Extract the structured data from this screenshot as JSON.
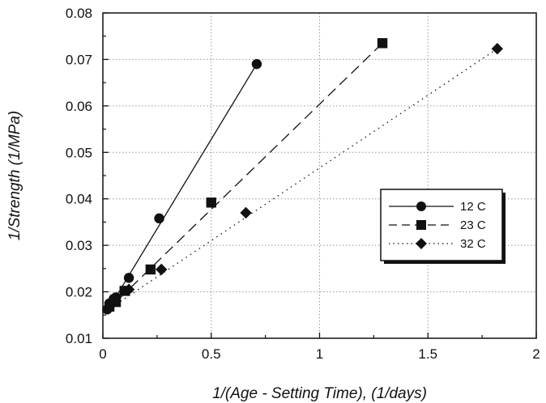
{
  "chart_data": {
    "type": "scatter",
    "title": "",
    "xlabel": "1/(Age - Setting Time), (1/days)",
    "ylabel": "1/Strength (1/MPa)",
    "xlim": [
      0,
      2
    ],
    "ylim": [
      0.01,
      0.08
    ],
    "xticks": [
      0,
      0.5,
      1,
      1.5,
      2
    ],
    "xtick_labels": [
      "0",
      "0.5",
      "1",
      "1.5",
      "2"
    ],
    "yticks": [
      0.01,
      0.02,
      0.03,
      0.04,
      0.05,
      0.06,
      0.07,
      0.08
    ],
    "ytick_labels": [
      "0.01",
      "0.02",
      "0.03",
      "0.04",
      "0.05",
      "0.06",
      "0.07",
      "0.08"
    ],
    "grid": true,
    "legend_position": "right-middle",
    "series": [
      {
        "name": "12 C",
        "marker": "circle",
        "line_style": "solid",
        "x": [
          0.02,
          0.03,
          0.05,
          0.06,
          0.12,
          0.26,
          0.71
        ],
        "y": [
          0.0162,
          0.0175,
          0.0185,
          0.0188,
          0.023,
          0.0358,
          0.069
        ],
        "fit": {
          "x": [
            0.02,
            0.71
          ],
          "y": [
            0.0158,
            0.069
          ]
        }
      },
      {
        "name": "23 C",
        "marker": "square",
        "line_style": "dashed",
        "x": [
          0.03,
          0.06,
          0.1,
          0.22,
          0.5,
          1.29
        ],
        "y": [
          0.0168,
          0.0178,
          0.0202,
          0.0248,
          0.0392,
          0.0735
        ],
        "fit": {
          "x": [
            0.02,
            1.29
          ],
          "y": [
            0.016,
            0.0735
          ]
        }
      },
      {
        "name": "32 C",
        "marker": "diamond",
        "line_style": "dotted",
        "x": [
          0.03,
          0.06,
          0.12,
          0.27,
          0.66,
          1.82
        ],
        "y": [
          0.0168,
          0.018,
          0.0205,
          0.0248,
          0.037,
          0.0723
        ],
        "fit": {
          "x": [
            0.02,
            1.82
          ],
          "y": [
            0.016,
            0.0723
          ]
        }
      }
    ],
    "colors": {
      "ink": "#111111",
      "grid": "#999999",
      "background": "#ffffff"
    }
  }
}
